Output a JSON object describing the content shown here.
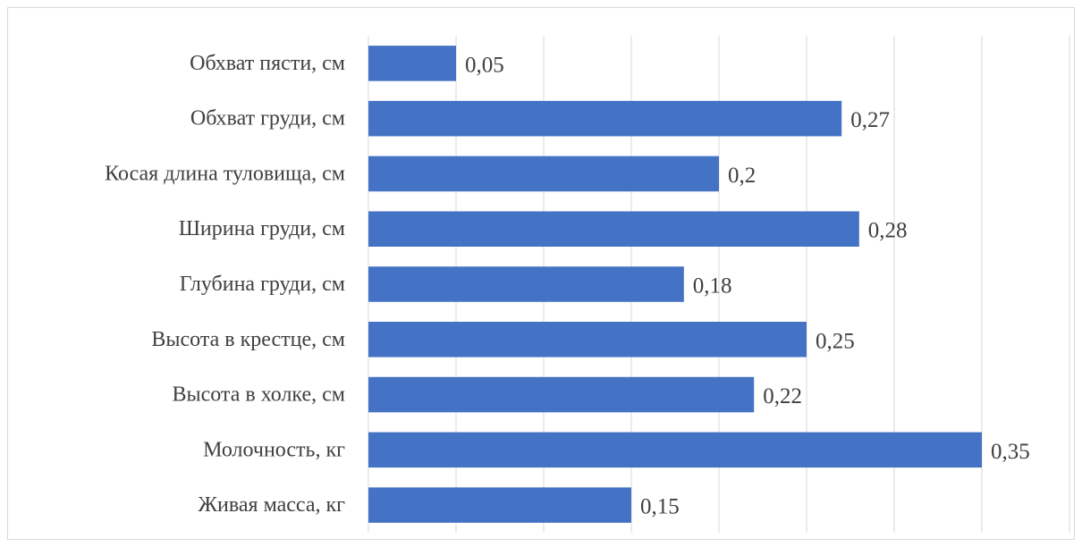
{
  "chart_data": {
    "type": "bar",
    "orientation": "horizontal",
    "categories": [
      "Обхват пясти, см",
      "Обхват груди, см",
      "Косая длина туловища, см",
      "Ширина груди, см",
      "Глубина груди, см",
      "Высота в крестце, см",
      "Высота в холке, см",
      "Молочность, кг",
      "Живая масса, кг"
    ],
    "values": [
      0.05,
      0.27,
      0.2,
      0.28,
      0.18,
      0.25,
      0.22,
      0.35,
      0.15
    ],
    "value_labels": [
      "0,05",
      "0,27",
      "0,2",
      "0,28",
      "0,18",
      "0,25",
      "0,22",
      "0,35",
      "0,15"
    ],
    "title": "",
    "xlabel": "",
    "ylabel": "",
    "xlim": [
      0,
      0.4
    ],
    "grid": true,
    "legend": "none",
    "bar_color": "#4472c4",
    "grid_color": "#d9d9d9"
  }
}
